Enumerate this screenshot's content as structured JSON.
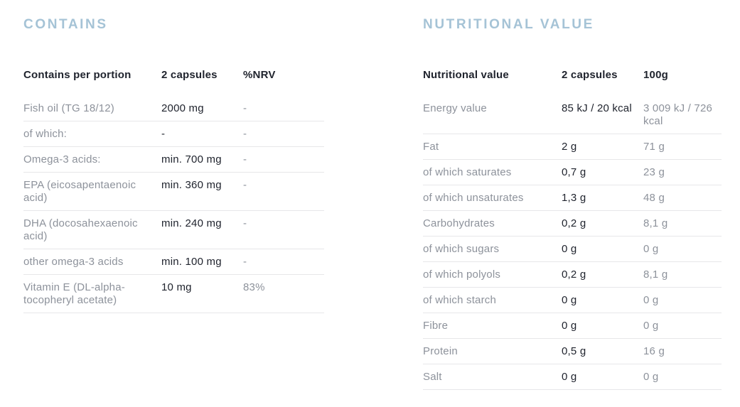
{
  "colors": {
    "title_blue": "#a5c3d6",
    "text_dark": "#20242e",
    "text_muted": "#8d929b",
    "divider": "#e7e7e9",
    "background": "#ffffff"
  },
  "contains": {
    "title": "CONTAINS",
    "columns": [
      "Contains per portion",
      "2 capsules",
      "%NRV"
    ],
    "rows": [
      [
        "Fish oil (TG 18/12)",
        "2000 mg",
        "-"
      ],
      [
        "of which:",
        "-",
        "-"
      ],
      [
        "Omega-3 acids:",
        "min. 700 mg",
        "-"
      ],
      [
        "EPA (eicosapentaenoic acid)",
        "min. 360 mg",
        "-"
      ],
      [
        "DHA (docosahexaenoic acid)",
        "min. 240 mg",
        "-"
      ],
      [
        "other omega-3 acids",
        "min. 100 mg",
        "-"
      ],
      [
        "Vitamin E (DL-alpha-tocopheryl acetate)",
        "10 mg",
        "83%"
      ]
    ]
  },
  "nutritional": {
    "title": "NUTRITIONAL VALUE",
    "columns": [
      "Nutritional value",
      "2 capsules",
      "100g"
    ],
    "rows": [
      [
        "Energy value",
        "85 kJ / 20 kcal",
        "3 009 kJ / 726 kcal"
      ],
      [
        "Fat",
        "2 g",
        "71 g"
      ],
      [
        "of which saturates",
        "0,7 g",
        "23 g"
      ],
      [
        "of which unsaturates",
        "1,3 g",
        "48 g"
      ],
      [
        "Carbohydrates",
        "0,2 g",
        "8,1 g"
      ],
      [
        "of which sugars",
        "0 g",
        "0 g"
      ],
      [
        "of which polyols",
        "0,2 g",
        "8,1 g"
      ],
      [
        "of which starch",
        "0 g",
        "0 g"
      ],
      [
        "Fibre",
        "0 g",
        "0 g"
      ],
      [
        "Protein",
        "0,5 g",
        "16 g"
      ],
      [
        "Salt",
        "0 g",
        "0 g"
      ]
    ]
  }
}
